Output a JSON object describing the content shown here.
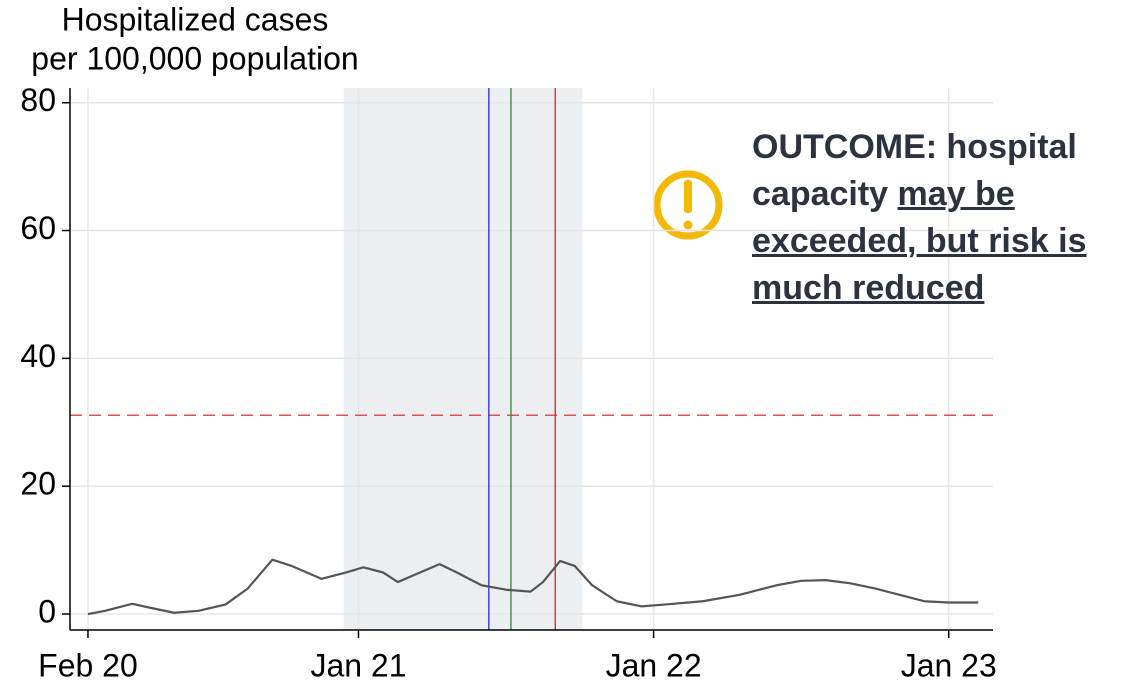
{
  "chart_data": {
    "type": "line",
    "y_label": [
      "Hospitalized cases",
      "per 100,000 population"
    ],
    "x": [
      1,
      1.7,
      2.8,
      3.5,
      4.5,
      5.5,
      6.6,
      7.5,
      8.5,
      9.3,
      10.5,
      11.5,
      12.2,
      13,
      13.6,
      14.5,
      15.3,
      16,
      17,
      18,
      19,
      19.5,
      20.2,
      20.8,
      21.5,
      22.5,
      23.5,
      24.5,
      26,
      27.5,
      29,
      30,
      31,
      32,
      33,
      34,
      35,
      36,
      37.2
    ],
    "values": [
      0,
      0.5,
      1.6,
      1.0,
      0.2,
      0.5,
      1.5,
      4,
      8.5,
      7.5,
      5.5,
      6.5,
      7.3,
      6.5,
      5,
      6.5,
      7.8,
      6.5,
      4.5,
      3.8,
      3.5,
      5,
      8.3,
      7.5,
      4.5,
      2,
      1.2,
      1.5,
      2,
      3,
      4.5,
      5.2,
      5.3,
      4.8,
      4,
      3,
      2,
      1.8,
      1.8
    ],
    "color": "#555555",
    "xlim": [
      0.27,
      37.8
    ],
    "ylim": [
      -2.5,
      82.3
    ],
    "xticks": [
      {
        "value": 1,
        "label": "Feb 20"
      },
      {
        "value": 12,
        "label": "Jan 21"
      },
      {
        "value": 24,
        "label": "Jan 22"
      },
      {
        "value": 36,
        "label": "Jan 23"
      }
    ],
    "yticks": [
      0,
      20,
      40,
      60,
      80
    ],
    "grid": true,
    "shaded_region": {
      "range": [
        11.4,
        21.1
      ],
      "color": "#eceff2"
    },
    "vlines": [
      {
        "value": 17.3,
        "color": "#2a2acc"
      },
      {
        "value": 18.2,
        "color": "#2a8a2a"
      },
      {
        "value": 20.0,
        "color": "#cc2222"
      }
    ],
    "capacity_line": {
      "value": 31.1,
      "color": "#e05050"
    },
    "annotation": {
      "text": "OUTCOME: hospital capacity",
      "emphasis": "may be exceeded, but risk is much reduced"
    }
  }
}
